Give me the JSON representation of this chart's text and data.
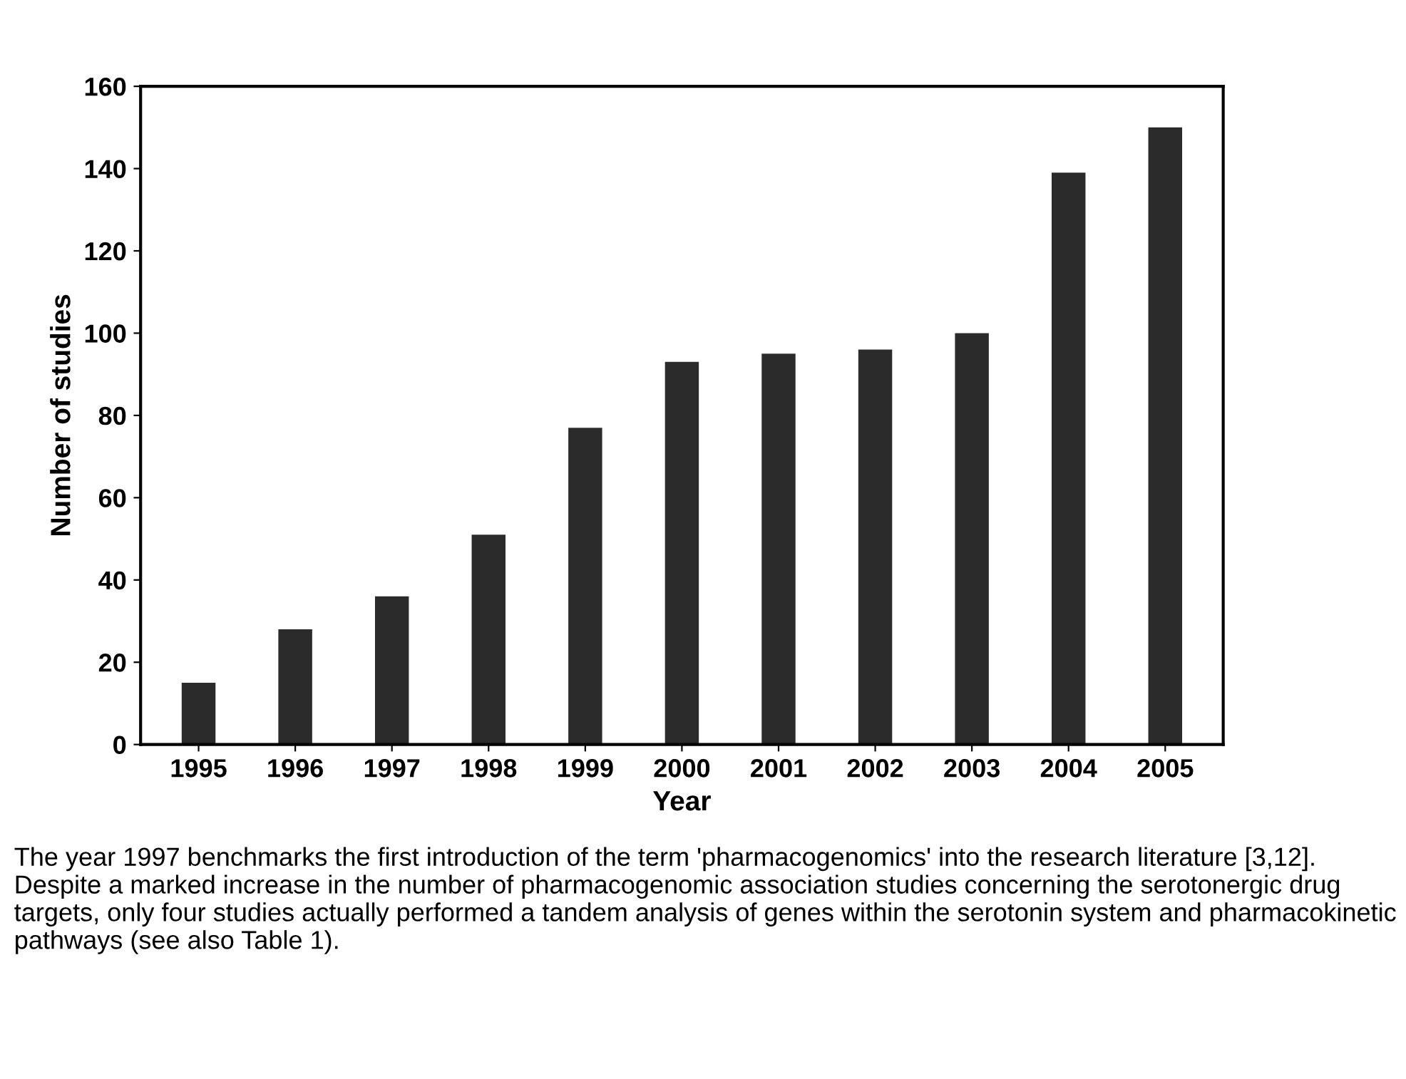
{
  "chart_data": {
    "type": "bar",
    "xlabel": "Year",
    "ylabel": "Number of studies",
    "categories": [
      "1995",
      "1996",
      "1997",
      "1998",
      "1999",
      "2000",
      "2001",
      "2002",
      "2003",
      "2004",
      "2005"
    ],
    "values": [
      15,
      28,
      36,
      51,
      77,
      93,
      95,
      96,
      100,
      139,
      150
    ],
    "color": "#2b2b2b",
    "ylim": [
      0,
      160
    ],
    "yticks": [
      0,
      20,
      40,
      60,
      80,
      100,
      120,
      140,
      160
    ],
    "grid": false,
    "legend": false,
    "annotations": [
      "The year 1997 benchmarks the first introduction of the term 'pharmacogenomics' into the research literature [3,12]. Despite a marked increase in the number of pharmacogenomic association studies concerning the serotonergic drug targets, only four studies actually performed a tandem analysis of genes within the serotonin system and pharmacokinetic pathways (see also Table 1)."
    ]
  }
}
